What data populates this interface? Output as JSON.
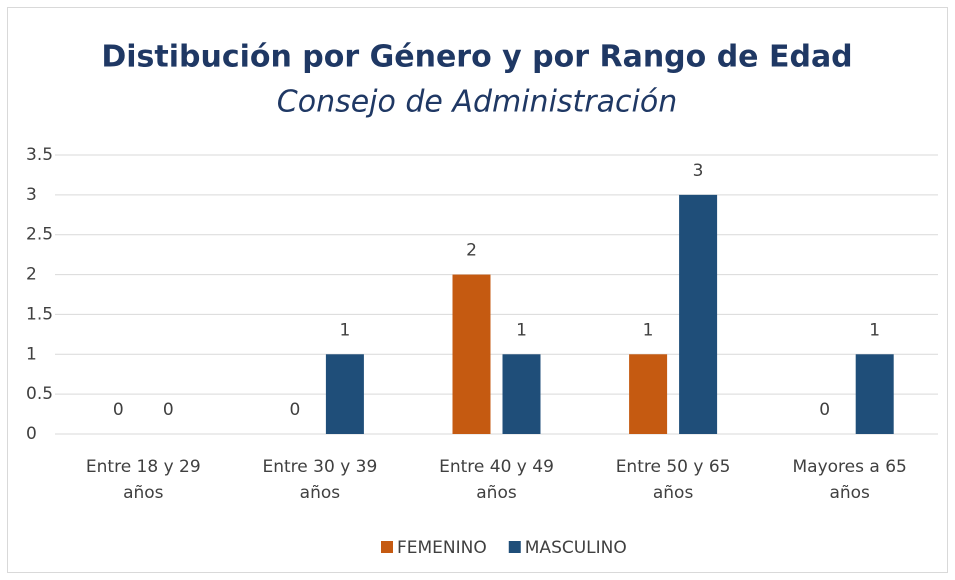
{
  "chart_data": {
    "type": "bar",
    "title": "Distibución por Género y por Rango de Edad",
    "subtitle": "Consejo de Administración",
    "categories": [
      "Entre 18 y 29 años",
      "Entre 30 y 39 años",
      "Entre 40 y 49 años",
      "Entre 50 y 65 años",
      "Mayores a 65 años"
    ],
    "series": [
      {
        "name": "FEMENINO",
        "color": "#c55a11",
        "values": [
          0,
          0,
          2,
          1,
          0
        ]
      },
      {
        "name": "MASCULINO",
        "color": "#1f4e79",
        "values": [
          0,
          1,
          1,
          3,
          1
        ]
      }
    ],
    "ylim": [
      0,
      3.5
    ],
    "yticks": [
      0,
      0.5,
      1,
      1.5,
      2,
      2.5,
      3,
      3.5
    ],
    "grid": true,
    "legend": "bottom"
  }
}
